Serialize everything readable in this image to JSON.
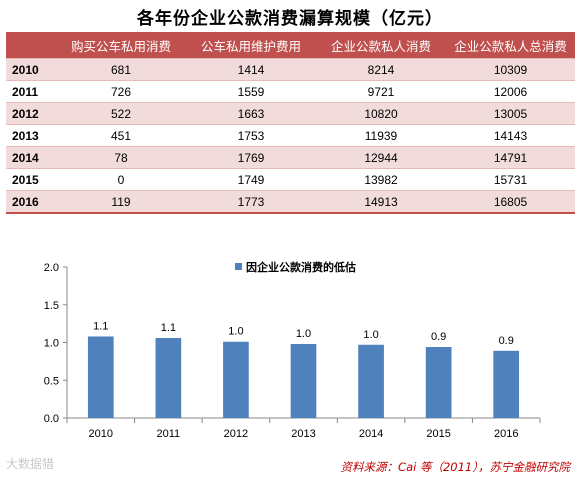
{
  "title": "各年份企业公款消费漏算规模（亿元）",
  "table": {
    "headers": [
      "",
      "购买公车私用消费",
      "公车私用维护费用",
      "企业公款私人消费",
      "企业公款私人总消费"
    ],
    "rows": [
      [
        "2010",
        "681",
        "1414",
        "8214",
        "10309"
      ],
      [
        "2011",
        "726",
        "1559",
        "9721",
        "12006"
      ],
      [
        "2012",
        "522",
        "1663",
        "10820",
        "13005"
      ],
      [
        "2013",
        "451",
        "1753",
        "11939",
        "14143"
      ],
      [
        "2014",
        "78",
        "1769",
        "12944",
        "14791"
      ],
      [
        "2015",
        "0",
        "1749",
        "13982",
        "15731"
      ],
      [
        "2016",
        "119",
        "1773",
        "14913",
        "16805"
      ]
    ]
  },
  "chart_data": {
    "type": "bar",
    "categories": [
      "2010",
      "2011",
      "2012",
      "2013",
      "2014",
      "2015",
      "2016"
    ],
    "series": [
      {
        "name": "因企业公款消费的低估",
        "values": [
          1.08,
          1.06,
          1.01,
          0.98,
          0.97,
          0.94,
          0.89
        ],
        "labels": [
          "1.1",
          "1.1",
          "1.0",
          "1.0",
          "1.0",
          "0.9",
          "0.9"
        ],
        "color": "#4f81bd"
      }
    ],
    "ylim": [
      0,
      2.0
    ],
    "yticks": [
      "0.0",
      "0.5",
      "1.0",
      "1.5",
      "2.0"
    ],
    "legend_position": "top-center",
    "grid": false
  },
  "watermark": "大数据猎",
  "source": "资料来源：Cai 等（2011），苏宁金融研究院"
}
